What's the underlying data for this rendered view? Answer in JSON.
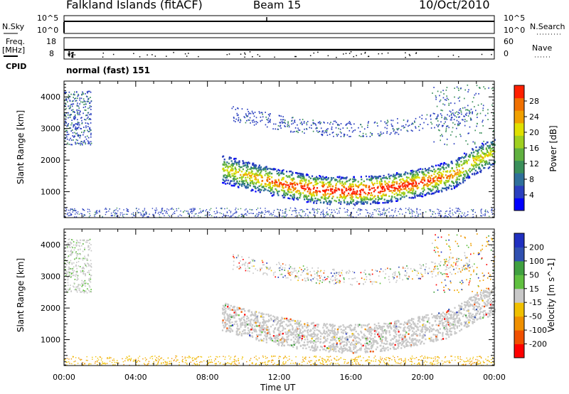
{
  "header": {
    "station": "Falkland Islands (fitACF)",
    "beam": "Beam 15",
    "date": "10/Oct/2010"
  },
  "strips": {
    "nsky_label": "N.Sky",
    "nsky_ticks": [
      "10^5",
      "10^0"
    ],
    "nsearch_label": "N.Search",
    "nsearch_ticks": [
      "10^5",
      "10^0"
    ],
    "freq_label": "Freq.",
    "freq_unit": "[MHz]",
    "freq_ticks": [
      "18",
      "8"
    ],
    "nave_label": "Nave",
    "nave_ticks": [
      "60",
      "0"
    ],
    "cpid_label": "CPID",
    "cpid_value": "normal (fast) 151"
  },
  "chart_data": [
    {
      "type": "heatmap",
      "name": "power",
      "ylabel": "Slant Range [km]",
      "y_ticks": [
        1000,
        2000,
        3000,
        4000
      ],
      "ylim": [
        180,
        4500
      ],
      "x_range_hours": [
        0,
        24
      ],
      "colorbar_label": "Power [dB]",
      "colorbar_ticks": [
        "28",
        "24",
        "20",
        "16",
        "12",
        "8",
        "4"
      ],
      "colorbar_colors": [
        "#0000ff",
        "#2a3fbf",
        "#2f6f9a",
        "#3a8f5a",
        "#60b040",
        "#a0d020",
        "#e0e000",
        "#f0a000",
        "#f07000",
        "#ff2000"
      ],
      "features": [
        {
          "desc": "main band",
          "x_hours": [
            8.8,
            24.0
          ],
          "range_km": [
            900,
            2400
          ],
          "peak_power_db": 30
        },
        {
          "desc": "upper scatter",
          "x_hours": [
            9.5,
            22.5
          ],
          "range_km": [
            2800,
            3800
          ],
          "peak_power_db": 6
        },
        {
          "desc": "early patch",
          "x_hours": [
            0.0,
            1.5
          ],
          "range_km": [
            2400,
            4200
          ],
          "peak_power_db": 10
        }
      ]
    },
    {
      "type": "heatmap",
      "name": "velocity",
      "ylabel": "Slant Range [km]",
      "xlabel": "Time UT",
      "x_ticks": [
        "00:00",
        "04:00",
        "08:00",
        "12:00",
        "16:00",
        "20:00",
        "00:00"
      ],
      "y_ticks": [
        1000,
        2000,
        3000,
        4000
      ],
      "ylim": [
        180,
        4500
      ],
      "colorbar_label": "Velocity [m s^-1]",
      "colorbar_ticks": [
        "200",
        "100",
        "50",
        "15",
        "-15",
        "-50",
        "-100",
        "-200"
      ],
      "colorbar_colors": [
        "#ff0000",
        "#f05000",
        "#f09000",
        "#f0c000",
        "#c8c8c8",
        "#60c040",
        "#40a040",
        "#3050b0",
        "#2030c0"
      ]
    }
  ]
}
